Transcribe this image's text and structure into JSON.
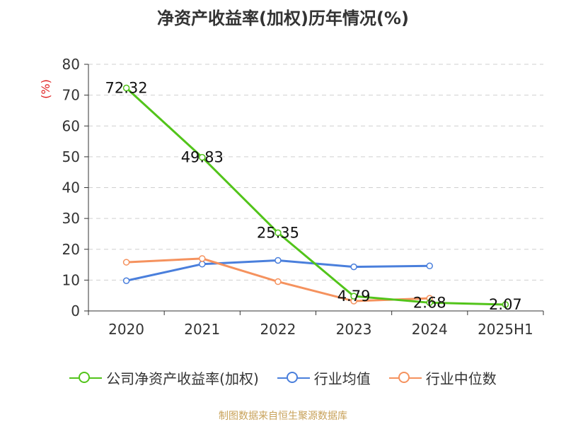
{
  "chart_data": {
    "type": "line",
    "title": "净资产收益率(加权)历年情况(%)",
    "ylabel": "(%)",
    "categories": [
      "2020",
      "2021",
      "2022",
      "2023",
      "2024",
      "2025H1"
    ],
    "ylim": [
      0,
      80
    ],
    "yticks": [
      "0",
      "10",
      "20",
      "30",
      "40",
      "50",
      "60",
      "70",
      "80"
    ],
    "grid": true,
    "legend_position": "bottom",
    "series": [
      {
        "name": "公司净资产收益率(加权)",
        "color": "#52c41a",
        "values": [
          72.32,
          49.83,
          25.35,
          4.79,
          2.68,
          2.07
        ],
        "labels": [
          "72.32",
          "49.83",
          "25.35",
          "4.79",
          "2.68",
          "2.07"
        ]
      },
      {
        "name": "行业均值",
        "color": "#4a7fdc",
        "values": [
          9.8,
          15.2,
          16.4,
          14.3,
          14.6,
          null
        ]
      },
      {
        "name": "行业中位数",
        "color": "#f5925e",
        "values": [
          15.8,
          17.0,
          9.5,
          3.2,
          4.1,
          null
        ]
      }
    ]
  },
  "source_note": "制图数据来自恒生聚源数据库"
}
